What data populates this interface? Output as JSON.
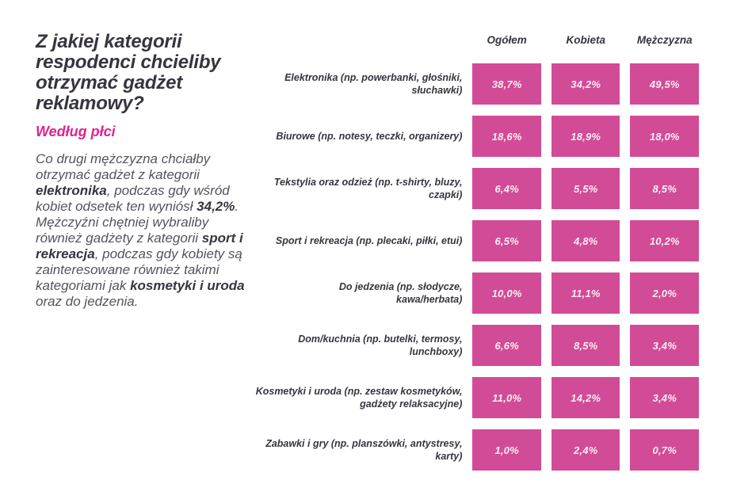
{
  "colors": {
    "accent_pink": "#e1238e",
    "cell_pink": "#d24b96",
    "heading": "#38343f",
    "body_text": "#56525e",
    "value_text": "#fceef7",
    "page_bg": "#ffffff"
  },
  "left_panel": {
    "title": "Z jakiej kategorii respodenci chcieliby otrzymać gadżet reklamowy?",
    "subtitle": "Według płci",
    "paragraph_segments": [
      {
        "text": "Co drugi mężczyzna chciałby otrzymać gadżet z kategorii ",
        "bold": false
      },
      {
        "text": "elektronika",
        "bold": true
      },
      {
        "text": ", podczas gdy wśród kobiet odsetek ten wyniósł ",
        "bold": false
      },
      {
        "text": "34,2%",
        "bold": true
      },
      {
        "text": ". Mężczyźni chętniej wybraliby również gadżety z kategorii ",
        "bold": false
      },
      {
        "text": "sport i rekreacja",
        "bold": true
      },
      {
        "text": ", podczas gdy kobiety są zainteresowane również takimi kategoriami jak ",
        "bold": false
      },
      {
        "text": "kosmetyki i uroda",
        "bold": true
      },
      {
        "text": " oraz do jedzenia.",
        "bold": false
      }
    ]
  },
  "chart_data": {
    "type": "table",
    "title": "Z jakiej kategorii respodenci chcieliby otrzymać gadżet reklamowy?",
    "subtitle": "Według płci",
    "unit": "%",
    "columns": [
      "Ogółem",
      "Kobieta",
      "Mężczyzna"
    ],
    "rows": [
      {
        "label": "Elektronika (np. powerbanki, głośniki,\nsłuchawki)",
        "values": [
          "38,7%",
          "34,2%",
          "49,5%"
        ],
        "values_pct": [
          38.7,
          34.2,
          49.5
        ]
      },
      {
        "label": "Biurowe (np. notesy, teczki, organizery)",
        "values": [
          "18,6%",
          "18,9%",
          "18,0%"
        ],
        "values_pct": [
          18.6,
          18.9,
          18.0
        ]
      },
      {
        "label": "Tekstylia oraz odzież (np. t-shirty, bluzy,\nczapki)",
        "values": [
          "6,4%",
          "5,5%",
          "8,5%"
        ],
        "values_pct": [
          6.4,
          5.5,
          8.5
        ]
      },
      {
        "label": "Sport i rekreacja (np. plecaki, piłki, etui)",
        "values": [
          "6,5%",
          "4,8%",
          "10,2%"
        ],
        "values_pct": [
          6.5,
          4.8,
          10.2
        ]
      },
      {
        "label": "Do jedzenia (np. słodycze,\nkawa/herbata)",
        "values": [
          "10,0%",
          "11,1%",
          "2,0%"
        ],
        "values_pct": [
          10.0,
          11.1,
          2.0
        ]
      },
      {
        "label": "Dom/kuchnia (np. butelki, termosy,\nlunchboxy)",
        "values": [
          "6,6%",
          "8,5%",
          "3,4%"
        ],
        "values_pct": [
          6.6,
          8.5,
          3.4
        ]
      },
      {
        "label": "Kosmetyki i uroda (np. zestaw kosmetyków,\ngadżety relaksacyjne)",
        "values": [
          "11,0%",
          "14,2%",
          "3,4%"
        ],
        "values_pct": [
          11.0,
          14.2,
          3.4
        ]
      },
      {
        "label": "Zabawki i gry (np. planszówki, antystresy,\nkarty)",
        "values": [
          "1,0%",
          "2,4%",
          "0,7%"
        ],
        "values_pct": [
          1.0,
          2.4,
          0.7
        ]
      }
    ]
  }
}
